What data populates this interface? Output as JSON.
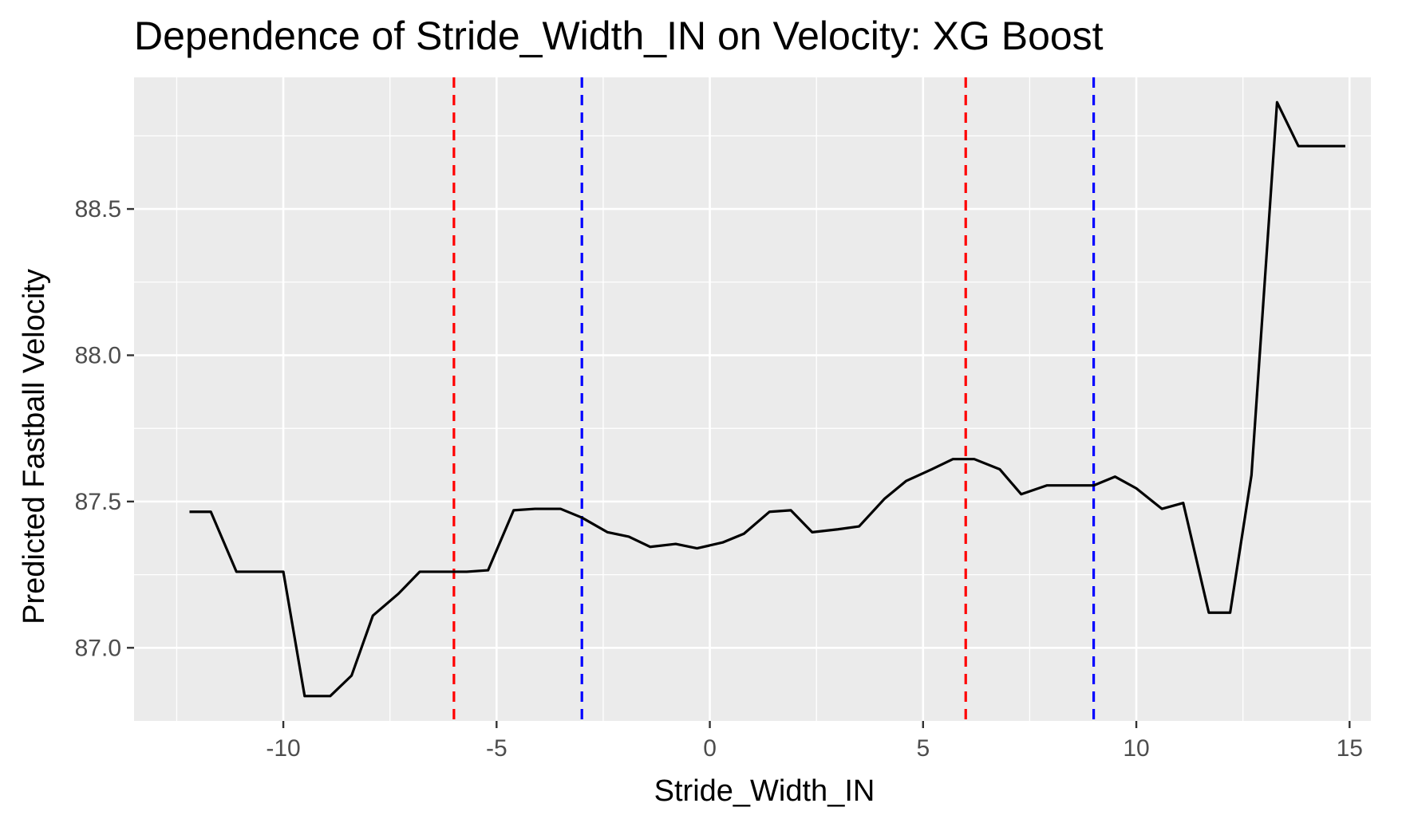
{
  "chart_data": {
    "type": "line",
    "title": "Dependence of Stride_Width_IN on Velocity: XG Boost",
    "xlabel": "Stride_Width_IN",
    "ylabel": "Predicted Fastball Velocity",
    "xlim": [
      -13.5,
      15.5
    ],
    "ylim": [
      86.75,
      88.95
    ],
    "x_ticks": [
      -10,
      -5,
      0,
      5,
      10,
      15
    ],
    "x_tick_labels": [
      "-10",
      "-5",
      "0",
      "5",
      "10",
      "15"
    ],
    "y_ticks": [
      87.0,
      87.5,
      88.0,
      88.5
    ],
    "y_tick_labels": [
      "87.0",
      "87.5",
      "88.0",
      "88.5"
    ],
    "grid": true,
    "background": "#ebebeb",
    "gridline_color": "#ffffff",
    "line_color": "#000000",
    "series": [
      {
        "x": [
          -12.2,
          -11.7,
          -11.1,
          -10.6,
          -10.0,
          -9.5,
          -8.9,
          -8.4,
          -7.9,
          -7.3,
          -6.8,
          -6.2,
          -5.7,
          -5.2,
          -4.6,
          -4.1,
          -3.5,
          -3.0,
          -2.4,
          -1.9,
          -1.4,
          -0.8,
          -0.3,
          0.3,
          0.8,
          1.4,
          1.9,
          2.4,
          3.0,
          3.5,
          4.1,
          4.6,
          5.2,
          5.7,
          6.2,
          6.8,
          7.3,
          7.9,
          8.4,
          9.0,
          9.5,
          10.0,
          10.6,
          11.1,
          11.7,
          12.2,
          12.7,
          13.3,
          13.8,
          14.3,
          14.9
        ],
        "y": [
          87.465,
          87.465,
          87.26,
          87.26,
          87.26,
          86.835,
          86.835,
          86.905,
          87.11,
          87.185,
          87.26,
          87.26,
          87.26,
          87.265,
          87.47,
          87.475,
          87.475,
          87.445,
          87.395,
          87.38,
          87.345,
          87.355,
          87.34,
          87.36,
          87.39,
          87.465,
          87.47,
          87.395,
          87.405,
          87.415,
          87.51,
          87.57,
          87.61,
          87.645,
          87.645,
          87.61,
          87.525,
          87.555,
          87.555,
          87.555,
          87.585,
          87.545,
          87.475,
          87.495,
          87.12,
          87.12,
          87.59,
          88.865,
          88.715,
          88.715,
          88.715
        ]
      }
    ],
    "reference_lines": [
      {
        "x": -6.0,
        "color": "#ff0000",
        "style": "dashed"
      },
      {
        "x": -3.0,
        "color": "#0000ff",
        "style": "dashed"
      },
      {
        "x": 6.0,
        "color": "#ff0000",
        "style": "dashed"
      },
      {
        "x": 9.0,
        "color": "#0000ff",
        "style": "dashed"
      }
    ]
  }
}
